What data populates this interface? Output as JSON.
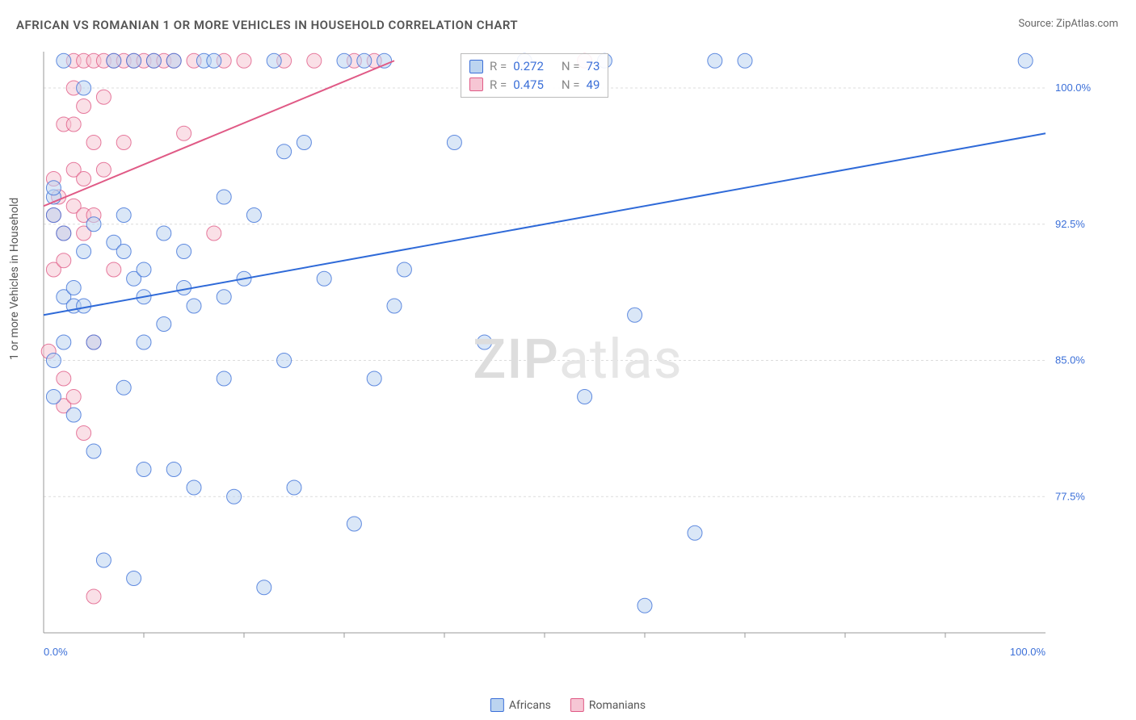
{
  "title": "AFRICAN VS ROMANIAN 1 OR MORE VEHICLES IN HOUSEHOLD CORRELATION CHART",
  "source": "Source: ZipAtlas.com",
  "watermark": {
    "zip": "ZIP",
    "atlas": "atlas"
  },
  "y_axis_label": "1 or more Vehicles in Household",
  "chart": {
    "type": "scatter",
    "xlim": [
      0,
      100
    ],
    "ylim": [
      70,
      102
    ],
    "x_ticks": [
      0,
      100
    ],
    "x_tick_labels": [
      "0.0%",
      "100.0%"
    ],
    "x_minor_ticks": [
      10,
      20,
      30,
      40,
      50,
      60,
      70,
      80,
      90
    ],
    "y_ticks": [
      77.5,
      85.0,
      92.5,
      100.0
    ],
    "y_tick_labels": [
      "77.5%",
      "85.0%",
      "92.5%",
      "100.0%"
    ],
    "grid_color": "#dcdcdc",
    "axis_color": "#999999",
    "background_color": "#ffffff",
    "marker_radius": 9,
    "marker_opacity": 0.55,
    "trend_line_width": 2
  },
  "series": {
    "africans": {
      "label": "Africans",
      "fill": "#bcd4f0",
      "stroke": "#3b6fd8",
      "line_color": "#2f6ad8",
      "R": "0.272",
      "N": "73",
      "trend": {
        "x1": 0,
        "y1": 87.5,
        "x2": 100,
        "y2": 97.5
      },
      "points": [
        [
          1,
          94
        ],
        [
          1,
          94.5
        ],
        [
          1,
          83
        ],
        [
          1,
          93
        ],
        [
          1,
          85
        ],
        [
          2,
          92
        ],
        [
          2,
          88.5
        ],
        [
          2,
          86
        ],
        [
          2,
          101.5
        ],
        [
          3,
          89
        ],
        [
          3,
          88
        ],
        [
          3,
          82
        ],
        [
          4,
          100
        ],
        [
          4,
          91
        ],
        [
          4,
          88
        ],
        [
          5,
          86
        ],
        [
          5,
          92.5
        ],
        [
          5,
          80
        ],
        [
          6,
          74
        ],
        [
          7,
          101.5
        ],
        [
          7,
          91.5
        ],
        [
          8,
          93
        ],
        [
          8,
          91
        ],
        [
          8,
          83.5
        ],
        [
          9,
          101.5
        ],
        [
          9,
          89.5
        ],
        [
          9,
          73
        ],
        [
          10,
          90
        ],
        [
          10,
          88.5
        ],
        [
          10,
          86
        ],
        [
          10,
          79
        ],
        [
          11,
          101.5
        ],
        [
          12,
          92
        ],
        [
          12,
          87
        ],
        [
          13,
          101.5
        ],
        [
          13,
          79
        ],
        [
          14,
          91
        ],
        [
          14,
          89
        ],
        [
          15,
          88
        ],
        [
          15,
          78
        ],
        [
          16,
          101.5
        ],
        [
          17,
          101.5
        ],
        [
          18,
          94
        ],
        [
          18,
          88.5
        ],
        [
          18,
          84
        ],
        [
          19,
          77.5
        ],
        [
          20,
          89.5
        ],
        [
          21,
          93
        ],
        [
          22,
          72.5
        ],
        [
          23,
          101.5
        ],
        [
          24,
          96.5
        ],
        [
          24,
          85
        ],
        [
          25,
          78
        ],
        [
          26,
          97
        ],
        [
          28,
          89.5
        ],
        [
          30,
          101.5
        ],
        [
          31,
          76
        ],
        [
          32,
          101.5
        ],
        [
          33,
          84
        ],
        [
          34,
          101.5
        ],
        [
          35,
          88
        ],
        [
          36,
          90
        ],
        [
          41,
          97
        ],
        [
          44,
          86
        ],
        [
          48,
          101.5
        ],
        [
          54,
          83
        ],
        [
          56,
          101.5
        ],
        [
          59,
          87.5
        ],
        [
          60,
          71.5
        ],
        [
          65,
          75.5
        ],
        [
          67,
          101.5
        ],
        [
          70,
          101.5
        ],
        [
          98,
          101.5
        ]
      ]
    },
    "romanians": {
      "label": "Romanians",
      "fill": "#f6c6d4",
      "stroke": "#e05a86",
      "line_color": "#e05a86",
      "R": "0.475",
      "N": "49",
      "trend": {
        "x1": 0,
        "y1": 93.5,
        "x2": 35,
        "y2": 101.5
      },
      "points": [
        [
          0.5,
          85.5
        ],
        [
          1,
          93
        ],
        [
          1,
          95
        ],
        [
          1,
          90
        ],
        [
          1.5,
          94
        ],
        [
          2,
          98
        ],
        [
          2,
          92
        ],
        [
          2,
          90.5
        ],
        [
          2,
          84
        ],
        [
          2,
          82.5
        ],
        [
          3,
          101.5
        ],
        [
          3,
          100
        ],
        [
          3,
          98
        ],
        [
          3,
          95.5
        ],
        [
          3,
          93.5
        ],
        [
          3,
          83
        ],
        [
          4,
          101.5
        ],
        [
          4,
          99
        ],
        [
          4,
          95
        ],
        [
          4,
          93
        ],
        [
          4,
          92
        ],
        [
          4,
          81
        ],
        [
          5,
          101.5
        ],
        [
          5,
          97
        ],
        [
          5,
          93
        ],
        [
          5,
          86
        ],
        [
          5,
          72
        ],
        [
          6,
          101.5
        ],
        [
          6,
          99.5
        ],
        [
          6,
          95.5
        ],
        [
          7,
          101.5
        ],
        [
          7,
          90
        ],
        [
          8,
          101.5
        ],
        [
          8,
          97
        ],
        [
          9,
          101.5
        ],
        [
          10,
          101.5
        ],
        [
          11,
          101.5
        ],
        [
          12,
          101.5
        ],
        [
          13,
          101.5
        ],
        [
          14,
          97.5
        ],
        [
          15,
          101.5
        ],
        [
          17,
          92
        ],
        [
          18,
          101.5
        ],
        [
          20,
          101.5
        ],
        [
          24,
          101.5
        ],
        [
          27,
          101.5
        ],
        [
          31,
          101.5
        ],
        [
          33,
          101.5
        ],
        [
          54,
          101.5
        ]
      ]
    }
  },
  "legend_box": {
    "r_label": "R =",
    "n_label": "N ="
  },
  "bottom_legend": {
    "series": [
      "africans",
      "romanians"
    ]
  }
}
